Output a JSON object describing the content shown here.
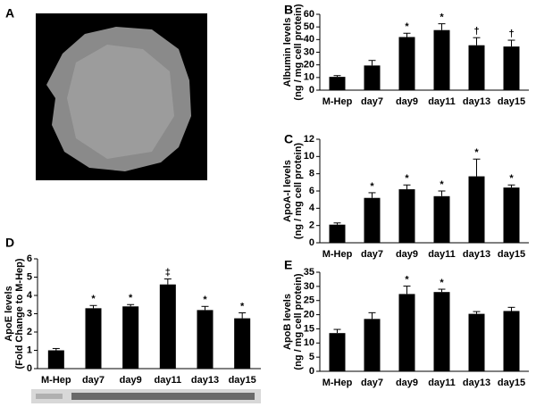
{
  "image_panel": {
    "label": "A"
  },
  "chart_data": [
    {
      "type": "bar",
      "panel": "B",
      "ylabel": [
        "Albumin levels",
        "(ng / mg cell protein)"
      ],
      "categories": [
        "M-Hep",
        "day7",
        "day9",
        "day11",
        "day13",
        "day15"
      ],
      "values": [
        10.5,
        19.5,
        42,
        47.5,
        35.5,
        34.5
      ],
      "errors": [
        1,
        4,
        3,
        5,
        6,
        5
      ],
      "annotations": [
        null,
        null,
        "*",
        "*",
        "†",
        "†"
      ],
      "color": "#000000",
      "ylim": [
        0,
        60
      ],
      "yticks": [
        0,
        10,
        20,
        30,
        40,
        50,
        60
      ]
    },
    {
      "type": "bar",
      "panel": "C",
      "ylabel": [
        "ApoA-I levels",
        "(ng / mg cell protein)"
      ],
      "categories": [
        "M-Hep",
        "day7",
        "day9",
        "day11",
        "day13",
        "day15"
      ],
      "values": [
        2.1,
        5.2,
        6.2,
        5.4,
        7.7,
        6.4
      ],
      "errors": [
        0.2,
        0.6,
        0.5,
        0.6,
        2.0,
        0.3
      ],
      "annotations": [
        null,
        "*",
        "*",
        "*",
        "*",
        "*"
      ],
      "color": "#000000",
      "ylim": [
        0,
        12
      ],
      "yticks": [
        0,
        2,
        4,
        6,
        8,
        10,
        12
      ]
    },
    {
      "type": "bar",
      "panel": "D",
      "ylabel": [
        "ApoE levels",
        "(Fold Change to M-Hep)"
      ],
      "categories": [
        "M-Hep",
        "day7",
        "day9",
        "day11",
        "day13",
        "day15"
      ],
      "values": [
        1.0,
        3.3,
        3.4,
        4.6,
        3.2,
        2.75
      ],
      "errors": [
        0.1,
        0.15,
        0.1,
        0.3,
        0.2,
        0.3
      ],
      "annotations": [
        null,
        "*",
        "*",
        "‡",
        "*",
        "*"
      ],
      "color": "#000000",
      "ylim": [
        0,
        6
      ],
      "yticks": [
        0,
        1,
        2,
        3,
        4,
        5,
        6
      ]
    },
    {
      "type": "bar",
      "panel": "E",
      "ylabel": [
        "ApoB levels",
        "(ng / mg cell protein)"
      ],
      "categories": [
        "M-Hep",
        "day7",
        "day9",
        "day11",
        "day13",
        "day15"
      ],
      "values": [
        13.5,
        18.5,
        27.3,
        28,
        20.3,
        21.3
      ],
      "errors": [
        1.3,
        2.2,
        2.8,
        1,
        0.8,
        1.3
      ],
      "annotations": [
        null,
        null,
        "*",
        "*",
        null,
        null
      ],
      "color": "#000000",
      "ylim": [
        0,
        35
      ],
      "yticks": [
        0,
        5,
        10,
        15,
        20,
        25,
        30,
        35
      ]
    }
  ]
}
